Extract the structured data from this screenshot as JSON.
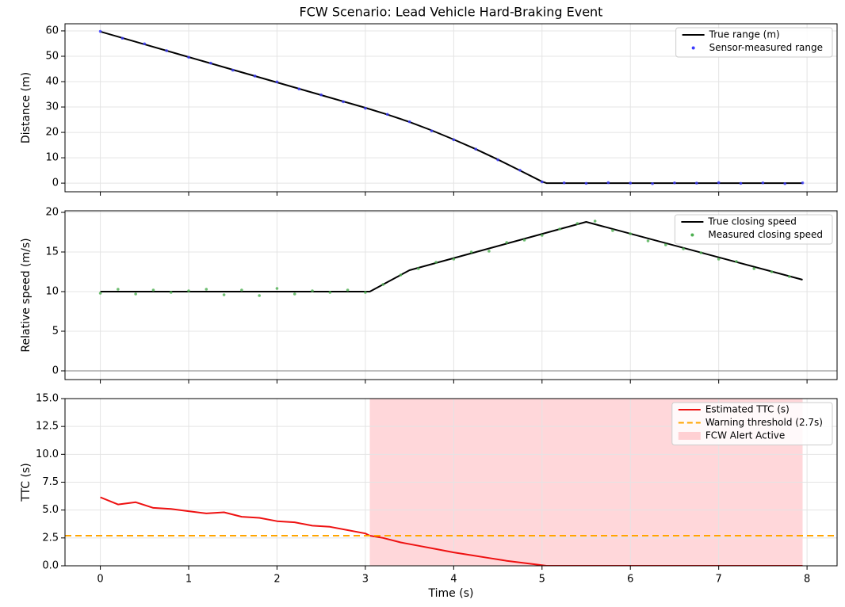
{
  "title": "FCW Scenario: Lead Vehicle Hard-Braking Event",
  "chart_data": [
    {
      "type": "line",
      "ylabel": "Distance (m)",
      "ylim": [
        -3.4,
        62.8
      ],
      "yticks": [
        0,
        10,
        20,
        30,
        40,
        50,
        60
      ],
      "grid": true,
      "legend": "upper right",
      "series": [
        {
          "name": "True range (m)",
          "style": "line",
          "color": "#000000",
          "x": [
            0,
            0.5,
            1,
            1.5,
            2,
            2.5,
            3,
            3.25,
            3.5,
            3.75,
            4,
            4.25,
            4.5,
            4.75,
            5,
            5.05,
            6,
            7,
            7.95
          ],
          "values": [
            59.7,
            54.7,
            49.7,
            44.7,
            39.7,
            34.7,
            29.7,
            27.0,
            24.1,
            20.8,
            17.2,
            13.4,
            9.3,
            5.0,
            0.6,
            0,
            0,
            0,
            0
          ]
        },
        {
          "name": "Sensor-measured range",
          "style": "scatter",
          "color": "#3b3bff",
          "x": [
            0,
            0.25,
            0.5,
            0.75,
            1,
            1.25,
            1.5,
            1.75,
            2,
            2.25,
            2.5,
            2.75,
            3,
            3.25,
            3.5,
            3.75,
            4,
            4.25,
            4.5,
            4.75,
            5,
            5.25,
            5.5,
            5.75,
            6,
            6.25,
            6.5,
            6.75,
            7,
            7.25,
            7.5,
            7.75,
            7.95
          ],
          "values": [
            59.8,
            57.1,
            54.9,
            52.2,
            49.6,
            47.3,
            44.5,
            42.2,
            39.9,
            37.1,
            34.8,
            32.1,
            29.5,
            27.1,
            24.2,
            20.6,
            17.1,
            13.4,
            9.2,
            5.1,
            0.5,
            0.1,
            -0.1,
            0.2,
            0,
            -0.2,
            0.1,
            0,
            0.2,
            -0.1,
            0.1,
            -0.2,
            0.1
          ]
        }
      ]
    },
    {
      "type": "line",
      "ylabel": "Relative speed (m/s)",
      "ylim": [
        -1.1,
        20.2
      ],
      "yticks": [
        0,
        5,
        10,
        15,
        20
      ],
      "grid": true,
      "legend": "upper right",
      "reference_line": {
        "value": 0,
        "color": "#999999"
      },
      "series": [
        {
          "name": "True closing speed",
          "style": "line",
          "color": "#000000",
          "x": [
            0,
            3.05,
            3.5,
            5.5,
            7.95
          ],
          "values": [
            10,
            10,
            12.7,
            18.8,
            11.5
          ]
        },
        {
          "name": "Measured closing speed",
          "style": "scatter",
          "color": "#4caf50",
          "x": [
            0,
            0.2,
            0.4,
            0.6,
            0.8,
            1,
            1.2,
            1.4,
            1.6,
            1.8,
            2,
            2.2,
            2.4,
            2.6,
            2.8,
            3,
            3.2,
            3.4,
            3.6,
            3.8,
            4,
            4.2,
            4.4,
            4.6,
            4.8,
            5,
            5.2,
            5.4,
            5.6,
            5.8,
            6,
            6.2,
            6.4,
            6.6,
            6.8,
            7,
            7.2,
            7.4,
            7.6,
            7.8
          ],
          "values": [
            9.8,
            10.3,
            9.7,
            10.2,
            9.9,
            10.1,
            10.3,
            9.6,
            10.2,
            9.5,
            10.4,
            9.7,
            10.1,
            9.9,
            10.2,
            9.9,
            10.9,
            12.1,
            12.9,
            13.7,
            14.1,
            15.0,
            15.1,
            16.2,
            16.5,
            17.1,
            17.9,
            18.6,
            18.9,
            17.7,
            17.3,
            16.4,
            15.9,
            15.4,
            14.9,
            14.1,
            13.8,
            12.9,
            12.5,
            11.9
          ]
        }
      ]
    },
    {
      "type": "line",
      "ylabel": "TTC (s)",
      "xlabel": "Time (s)",
      "xlim": [
        -0.4,
        8.34
      ],
      "xticks": [
        0,
        1,
        2,
        3,
        4,
        5,
        6,
        7,
        8
      ],
      "ylim": [
        0,
        15
      ],
      "yticks": [
        {
          "value": 0,
          "label": "0.0"
        },
        2.5,
        {
          "value": 5,
          "label": "5.0"
        },
        7.5,
        {
          "value": 10,
          "label": "10.0"
        },
        12.5,
        {
          "value": 15,
          "label": "15.0"
        }
      ],
      "grid": true,
      "legend": "upper right",
      "series": [
        {
          "name": "Estimated TTC (s)",
          "style": "line",
          "color": "#ee1111",
          "x": [
            0,
            0.2,
            0.4,
            0.6,
            0.8,
            1,
            1.2,
            1.4,
            1.6,
            1.8,
            2,
            2.2,
            2.4,
            2.6,
            2.8,
            3,
            3.05,
            3.2,
            3.4,
            3.6,
            3.8,
            4,
            4.2,
            4.4,
            4.6,
            4.8,
            5,
            5.05,
            6,
            7,
            7.95
          ],
          "values": [
            6.15,
            5.5,
            5.7,
            5.2,
            5.1,
            4.9,
            4.7,
            4.8,
            4.4,
            4.3,
            4.0,
            3.9,
            3.6,
            3.5,
            3.2,
            2.9,
            2.7,
            2.5,
            2.1,
            1.8,
            1.5,
            1.2,
            0.95,
            0.7,
            0.45,
            0.25,
            0.05,
            0,
            0,
            0,
            0
          ]
        },
        {
          "name": "Warning threshold (2.7s)",
          "style": "hline",
          "color": "#ffa500",
          "value": 2.7
        },
        {
          "name": "FCW Alert Active",
          "style": "span",
          "color": "#ffd0d3",
          "span": [
            3.05,
            7.95
          ]
        }
      ]
    }
  ]
}
